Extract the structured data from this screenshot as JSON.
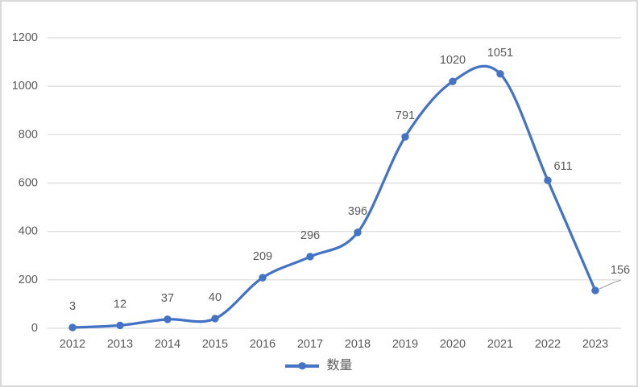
{
  "chart_data": {
    "type": "line",
    "title": "",
    "xlabel": "",
    "ylabel": "",
    "legend": "数量",
    "legend_position": "bottom-center",
    "smooth": true,
    "grid": true,
    "categories": [
      "2012",
      "2013",
      "2014",
      "2015",
      "2016",
      "2017",
      "2018",
      "2019",
      "2020",
      "2021",
      "2022",
      "2023"
    ],
    "series": [
      {
        "name": "数量",
        "values": [
          3,
          12,
          37,
          40,
          209,
          296,
          396,
          791,
          1020,
          1051,
          611,
          156
        ]
      }
    ],
    "data_labels": [
      "3",
      "12",
      "37",
      "40",
      "209",
      "296",
      "396",
      "791",
      "1020",
      "1051",
      "611",
      "156"
    ],
    "ylim": [
      0,
      1200
    ],
    "yticks": [
      0,
      200,
      400,
      600,
      800,
      1000,
      1200
    ],
    "label_offsets": {
      "10": {
        "dx": 19,
        "dy": 9
      },
      "11": {
        "dx": 31,
        "dy": 1
      }
    },
    "leader_line_point_index": 11,
    "colors": {
      "series": "#4472C4",
      "grid": "#D9D9D9",
      "text": "#595959",
      "leader": "#A6A6A6",
      "border": "#D9D9D9",
      "background": "#FFFFFF"
    }
  }
}
